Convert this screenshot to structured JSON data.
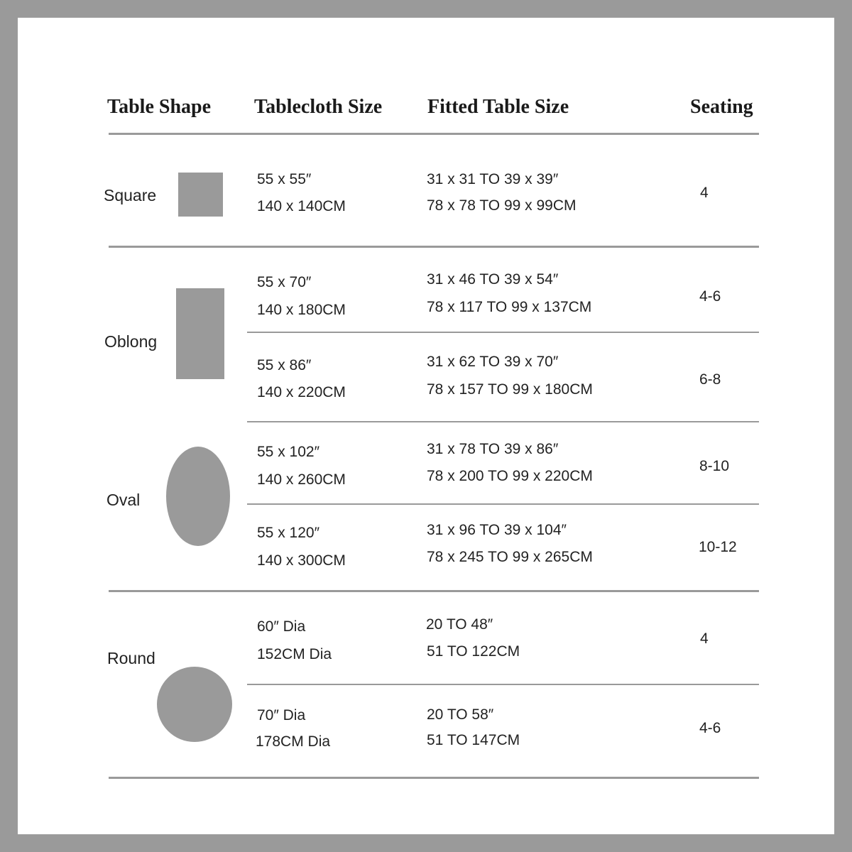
{
  "headers": {
    "shape": "Table Shape",
    "tablecloth": "Tablecloth Size",
    "fitted": "Fitted Table Size",
    "seating": "Seating"
  },
  "shapes": {
    "square": "Square",
    "oblong": "Oblong",
    "oval": "Oval",
    "round": "Round"
  },
  "rows": [
    {
      "tablecloth_in": "55 x 55″",
      "tablecloth_cm": "140 x 140CM",
      "fitted_in": "31 x 31 TO 39 x 39″",
      "fitted_cm": "78 x 78 TO 99 x 99CM",
      "seating": "4"
    },
    {
      "tablecloth_in": "55 x 70″",
      "tablecloth_cm": "140 x 180CM",
      "fitted_in": "31 x 46 TO 39 x 54″",
      "fitted_cm": "78 x 117 TO 99 x 137CM",
      "seating": "4-6"
    },
    {
      "tablecloth_in": "55 x 86″",
      "tablecloth_cm": "140 x 220CM",
      "fitted_in": "31 x 62 TO 39 x 70″",
      "fitted_cm": "78 x 157 TO 99 x 180CM",
      "seating": "6-8"
    },
    {
      "tablecloth_in": "55 x 102″",
      "tablecloth_cm": "140 x 260CM",
      "fitted_in": "31 x 78 TO 39 x 86″",
      "fitted_cm": "78 x 200 TO 99 x 220CM",
      "seating": "8-10"
    },
    {
      "tablecloth_in": "55 x 120″",
      "tablecloth_cm": "140 x 300CM",
      "fitted_in": "31 x 96 TO 39 x 104″",
      "fitted_cm": "78 x 245 TO 99 x 265CM",
      "seating": "10-12"
    },
    {
      "tablecloth_in": "60″ Dia",
      "tablecloth_cm": "152CM Dia",
      "fitted_in": "20 TO 48″",
      "fitted_cm": "51 TO 122CM",
      "seating": "4"
    },
    {
      "tablecloth_in": "70″ Dia",
      "tablecloth_cm": "178CM Dia",
      "fitted_in": "20 TO 58″",
      "fitted_cm": "51 TO 147CM",
      "seating": "4-6"
    }
  ],
  "colors": {
    "frame": "#9a9a9a",
    "shape_fill": "#9a9a9a",
    "text": "#222222"
  }
}
